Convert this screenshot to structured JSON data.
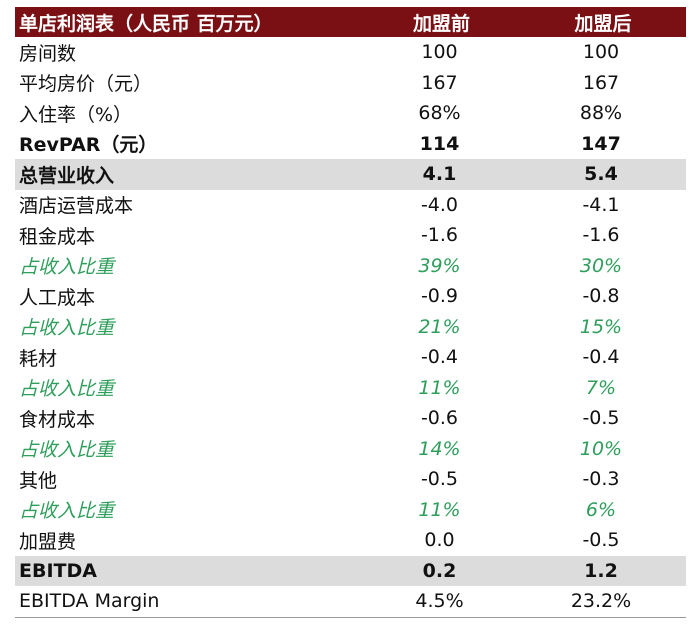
{
  "table": {
    "header": {
      "title": "单店利润表（人民币 百万元）",
      "col_before": "加盟前",
      "col_after": "加盟后"
    },
    "rows": [
      {
        "label": "房间数",
        "before": "100",
        "after": "100",
        "style": "normal"
      },
      {
        "label": "平均房价（元）",
        "before": "167",
        "after": "167",
        "style": "normal"
      },
      {
        "label": "入住率（%）",
        "before": "68%",
        "after": "88%",
        "style": "normal"
      },
      {
        "label": "RevPAR（元）",
        "before": "114",
        "after": "147",
        "style": "bold"
      },
      {
        "label": "总营业收入",
        "before": "4.1",
        "after": "5.4",
        "style": "shaded"
      },
      {
        "label": "酒店运营成本",
        "before": "-4.0",
        "after": "-4.1",
        "style": "normal"
      },
      {
        "label": "租金成本",
        "before": "-1.6",
        "after": "-1.6",
        "style": "normal"
      },
      {
        "label": "占收入比重",
        "before": "39%",
        "after": "30%",
        "style": "ratio"
      },
      {
        "label": "人工成本",
        "before": "-0.9",
        "after": "-0.8",
        "style": "normal"
      },
      {
        "label": "占收入比重",
        "before": "21%",
        "after": "15%",
        "style": "ratio"
      },
      {
        "label": "耗材",
        "before": "-0.4",
        "after": "-0.4",
        "style": "normal"
      },
      {
        "label": "占收入比重",
        "before": "11%",
        "after": "7%",
        "style": "ratio"
      },
      {
        "label": "食材成本",
        "before": "-0.6",
        "after": "-0.5",
        "style": "normal"
      },
      {
        "label": "占收入比重",
        "before": "14%",
        "after": "10%",
        "style": "ratio"
      },
      {
        "label": "其他",
        "before": "-0.5",
        "after": "-0.3",
        "style": "normal"
      },
      {
        "label": "占收入比重",
        "before": "11%",
        "after": "6%",
        "style": "ratio"
      },
      {
        "label": "加盟费",
        "before": "0.0",
        "after": "-0.5",
        "style": "normal"
      },
      {
        "label": "EBITDA",
        "before": "0.2",
        "after": "1.2",
        "style": "shaded"
      },
      {
        "label": "EBITDA Margin",
        "before": "4.5%",
        "after": "23.2%",
        "style": "last"
      }
    ]
  }
}
